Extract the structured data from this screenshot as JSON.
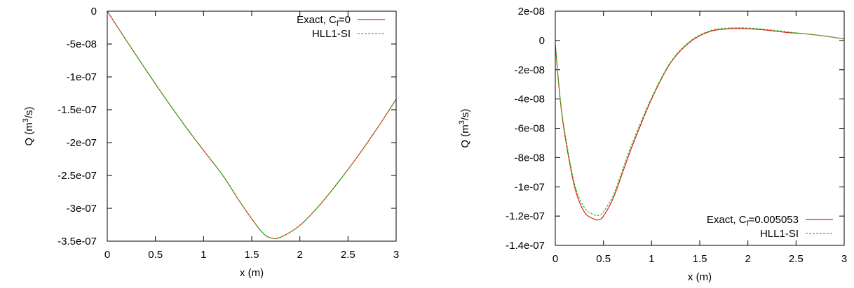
{
  "chart_data": [
    {
      "type": "line",
      "xlabel": "x (m)",
      "ylabel": "Q (m³/s)",
      "ylabel_base": "Q (m",
      "ylabel_sup": "3",
      "ylabel_tail": "/s)",
      "xlim": [
        0,
        3
      ],
      "ylim": [
        -3.5e-07,
        0
      ],
      "xticks": [
        "0",
        "0.5",
        "1",
        "1.5",
        "2",
        "2.5",
        "3"
      ],
      "yticks": [
        "0",
        "-5e-08",
        "-1e-07",
        "-1.5e-07",
        "-2e-07",
        "-2.5e-07",
        "-3e-07",
        "-3.5e-07"
      ],
      "grid": false,
      "legend_position": "top-right",
      "series": [
        {
          "name": "Exact, Cf=0",
          "name_base": "Exact, C",
          "name_sub": "f",
          "name_tail": "=0",
          "color": "#e41a1c",
          "dashed": false,
          "x": [
            0,
            0.2,
            0.4,
            0.6,
            0.8,
            1.0,
            1.2,
            1.4,
            1.6,
            1.7,
            1.8,
            2.0,
            2.2,
            2.4,
            2.6,
            2.8,
            3.0
          ],
          "y": [
            0,
            -4.5e-08,
            -8.9e-08,
            -1.32e-07,
            -1.73e-07,
            -2.12e-07,
            -2.5e-07,
            -2.95e-07,
            -3.35e-07,
            -3.45e-07,
            -3.44e-07,
            -3.26e-07,
            -2.96e-07,
            -2.6e-07,
            -2.21e-07,
            -1.79e-07,
            -1.34e-07
          ]
        },
        {
          "name": "HLL1-SI",
          "color": "#1fc81f",
          "dashed": true,
          "x": [
            0,
            0.2,
            0.4,
            0.6,
            0.8,
            1.0,
            1.2,
            1.4,
            1.6,
            1.7,
            1.8,
            2.0,
            2.2,
            2.4,
            2.6,
            2.8,
            3.0
          ],
          "y": [
            0,
            -4.5e-08,
            -8.9e-08,
            -1.32e-07,
            -1.73e-07,
            -2.12e-07,
            -2.5e-07,
            -2.95e-07,
            -3.35e-07,
            -3.45e-07,
            -3.44e-07,
            -3.26e-07,
            -2.96e-07,
            -2.6e-07,
            -2.21e-07,
            -1.79e-07,
            -1.34e-07
          ]
        }
      ]
    },
    {
      "type": "line",
      "xlabel": "x (m)",
      "ylabel": "Q (m³/s)",
      "ylabel_base": "Q (m",
      "ylabel_sup": "3",
      "ylabel_tail": "/s)",
      "xlim": [
        0,
        3
      ],
      "ylim": [
        -1.4e-07,
        2e-08
      ],
      "xticks": [
        "0",
        "0.5",
        "1",
        "1.5",
        "2",
        "2.5",
        "3"
      ],
      "yticks": [
        "2e-08",
        "0",
        "-2e-08",
        "-4e-08",
        "-6e-08",
        "-8e-08",
        "-1e-07",
        "-1.2e-07",
        "-1.4e-07"
      ],
      "grid": false,
      "legend_position": "bottom-right",
      "series": [
        {
          "name": "Exact, Cf=0.005053",
          "name_base": "Exact, C",
          "name_sub": "f",
          "name_tail": "=0.005053",
          "color": "#e41a1c",
          "dashed": false,
          "x": [
            0,
            0.05,
            0.1,
            0.2,
            0.3,
            0.4,
            0.45,
            0.5,
            0.6,
            0.7,
            0.8,
            1.0,
            1.2,
            1.4,
            1.6,
            1.8,
            2.0,
            2.2,
            2.4,
            2.6,
            2.8,
            3.0
          ],
          "y": [
            -3e-09,
            -4e-08,
            -6.5e-08,
            -1e-07,
            -1.17e-07,
            -1.22e-07,
            -1.225e-07,
            -1.2e-07,
            -1.08e-07,
            -9e-08,
            -7.2e-08,
            -4e-08,
            -1.5e-08,
            -1e-09,
            6e-09,
            8e-09,
            8e-09,
            7e-09,
            5.5e-09,
            4.5e-09,
            3e-09,
            1e-09
          ]
        },
        {
          "name": "HLL1-SI",
          "color": "#1fc81f",
          "dashed": true,
          "x": [
            0,
            0.05,
            0.1,
            0.2,
            0.3,
            0.4,
            0.45,
            0.5,
            0.6,
            0.7,
            0.8,
            1.0,
            1.2,
            1.4,
            1.6,
            1.8,
            2.0,
            2.2,
            2.4,
            2.6,
            2.8,
            3.0
          ],
          "y": [
            -3e-09,
            -3.9e-08,
            -6.3e-08,
            -9.8e-08,
            -1.14e-07,
            -1.19e-07,
            -1.195e-07,
            -1.17e-07,
            -1.06e-07,
            -8.8e-08,
            -7e-08,
            -3.9e-08,
            -1.45e-08,
            -5e-10,
            6.5e-09,
            8.5e-09,
            8.5e-09,
            7.5e-09,
            6e-09,
            4.5e-09,
            3e-09,
            1e-09
          ]
        }
      ]
    }
  ]
}
